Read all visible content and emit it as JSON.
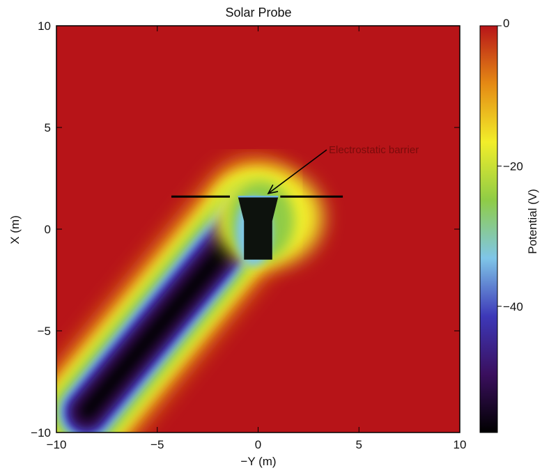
{
  "chart_data": {
    "type": "heatmap",
    "title": "Solar Probe",
    "xlabel": "−Y (m)",
    "ylabel": "X (m)",
    "xlim": [
      -10,
      10
    ],
    "ylim": [
      -10,
      10
    ],
    "x_ticks": [
      -10,
      -5,
      0,
      5,
      10
    ],
    "y_ticks": [
      -10,
      -5,
      0,
      5,
      10
    ],
    "x_tick_labels": [
      "−10",
      "−5",
      "0",
      "5",
      "10"
    ],
    "y_tick_labels": [
      "−10",
      "−5",
      "0",
      "5",
      "10"
    ],
    "colorbar": {
      "label": "Potential (V)",
      "range": [
        -58,
        0
      ],
      "ticks": [
        0,
        -20,
        -40
      ],
      "tick_labels": [
        "0",
        "−20",
        "−40"
      ],
      "colors": [
        "#000000",
        "#3a0f5e",
        "#3d38b8",
        "#7fc6e8",
        "#8fcc46",
        "#f2ee2a",
        "#e58a14",
        "#b71418"
      ]
    },
    "background_potential_V": 0,
    "wake": {
      "description_points": [
        {
          "x": -8.5,
          "y": -9.0
        },
        {
          "x": -0.5,
          "y": 0.5
        }
      ],
      "min_potential_V": -58
    },
    "spacecraft": {
      "heat_shield_x_range": [
        -1.0,
        1.0
      ],
      "heat_shield_y": 1.6,
      "body_x_range": [
        -0.7,
        0.7
      ],
      "body_y_range": [
        -1.5,
        0.4
      ]
    },
    "boom_lines": [
      {
        "x": [
          -4.3,
          -1.4
        ],
        "y": [
          1.6,
          1.6
        ]
      },
      {
        "x": [
          1.1,
          4.2
        ],
        "y": [
          1.6,
          1.6
        ]
      }
    ],
    "annotations": [
      {
        "text": "Electrostatic barrier",
        "x": 3.4,
        "y": 3.9,
        "arrow_to": {
          "x": 0.5,
          "y": 1.75
        }
      }
    ]
  }
}
